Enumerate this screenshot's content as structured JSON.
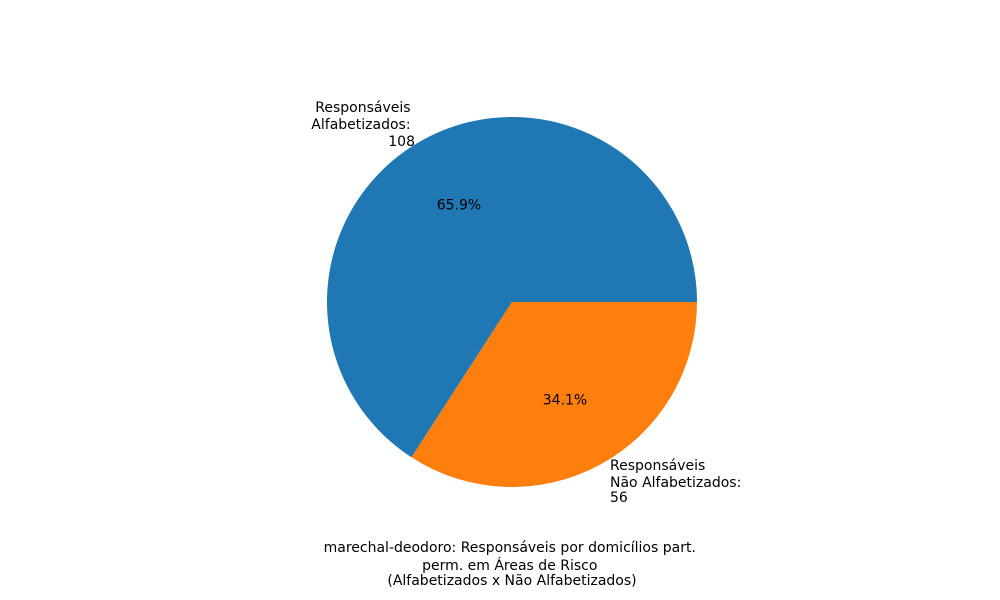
{
  "chart_data": {
    "type": "pie",
    "title_lines": [
      "marechal-deodoro: Responsáveis por domicílios part.",
      "perm. em Áreas de Risco",
      "(Alfabetizados x Não Alfabetizados)"
    ],
    "slices": [
      {
        "label_lines": [
          "Responsáveis",
          "Alfabetizados:",
          "108"
        ],
        "value": 108,
        "percent_label": "65.9%",
        "color": "#1f77b4"
      },
      {
        "label_lines": [
          "Responsáveis",
          "Não Alfabetizados:",
          "56"
        ],
        "value": 56,
        "percent_label": "34.1%",
        "color": "#ff7f0e"
      }
    ],
    "start_angle_deg": 0,
    "direction": "counterclockwise"
  }
}
